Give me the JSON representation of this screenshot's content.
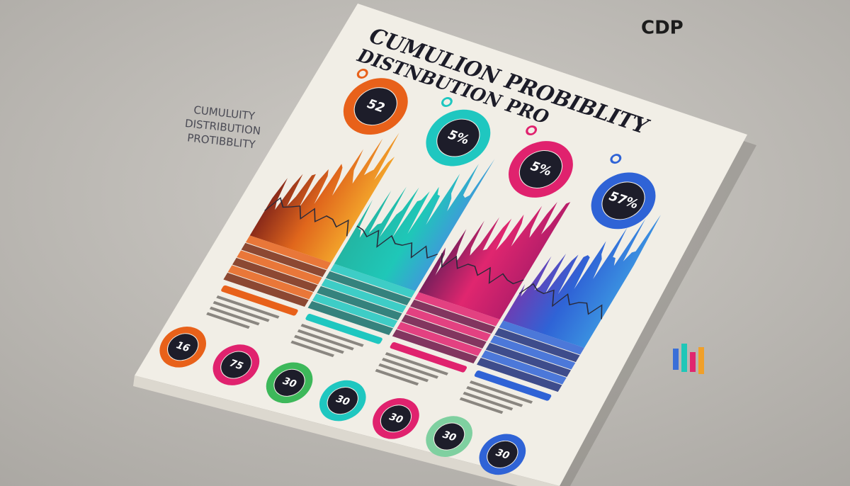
{
  "header": {
    "brand": "CDP",
    "title_lines": [
      "CUMULION PROBIBLITY",
      "DISTNBUTION PRO"
    ],
    "side_label": [
      "CUMULUITY",
      "DISTRIBUTION",
      "PROTIBBLITY"
    ]
  },
  "panels": [
    {
      "label": "52"
    },
    {
      "label": "5%"
    },
    {
      "label": "5%"
    },
    {
      "label": "57%"
    }
  ],
  "bottom_gauges": [
    "16",
    "75",
    "30",
    "30",
    "30",
    "30",
    "30"
  ]
}
